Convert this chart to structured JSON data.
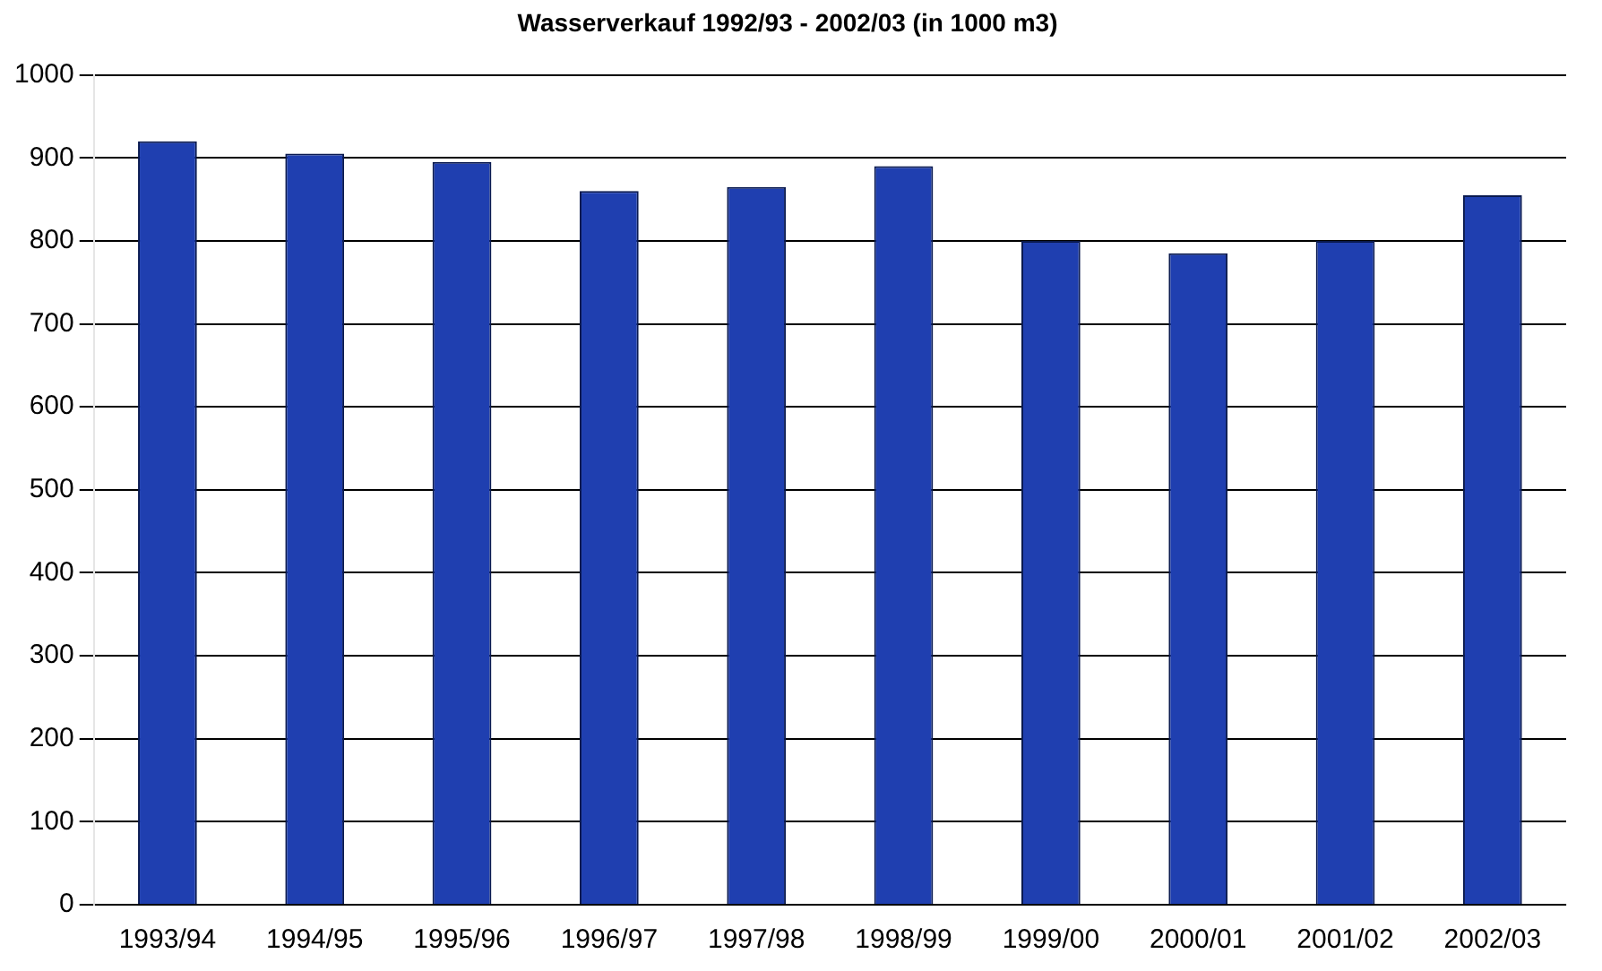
{
  "chart_data": {
    "type": "bar",
    "title": "Wasserverkauf 1992/93 - 2002/03 (in 1000 m3)",
    "categories": [
      "1993/94",
      "1994/95",
      "1995/96",
      "1996/97",
      "1997/98",
      "1998/99",
      "1999/00",
      "2000/01",
      "2001/02",
      "2002/03"
    ],
    "values": [
      920,
      905,
      895,
      860,
      865,
      890,
      800,
      785,
      800,
      855
    ],
    "color": "#1f3fb0",
    "ylim": [
      0,
      1000
    ],
    "yticks": [
      0,
      100,
      200,
      300,
      400,
      500,
      600,
      700,
      800,
      900,
      1000
    ],
    "grid": "y"
  }
}
